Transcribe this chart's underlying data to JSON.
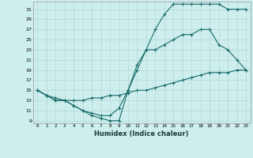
{
  "xlabel": "Humidex (Indice chaleur)",
  "ylabel": "",
  "background_color": "#cdeeed",
  "line_color": "#1a6b6b",
  "grid_color": "#afd8d4",
  "x_ticks": [
    0,
    1,
    2,
    3,
    4,
    5,
    6,
    7,
    8,
    9,
    10,
    11,
    12,
    13,
    14,
    15,
    16,
    17,
    18,
    19,
    20,
    21,
    22,
    23
  ],
  "y_ticks": [
    9,
    11,
    13,
    15,
    17,
    19,
    21,
    23,
    25,
    27,
    29,
    31
  ],
  "xlim": [
    -0.5,
    23.5
  ],
  "ylim": [
    8.5,
    32.5
  ],
  "series": [
    {
      "x": [
        0,
        1,
        2,
        3,
        4,
        5,
        6,
        7,
        8,
        9,
        10,
        11,
        12,
        13,
        14,
        15,
        16,
        17,
        18,
        19,
        20,
        21,
        22,
        23
      ],
      "y": [
        15,
        14,
        13,
        13,
        12,
        11,
        10,
        9.5,
        9,
        9,
        15,
        19,
        23,
        27,
        30,
        32,
        32,
        32,
        32,
        32,
        32,
        31,
        31,
        31
      ]
    },
    {
      "x": [
        0,
        1,
        2,
        3,
        4,
        5,
        6,
        7,
        8,
        9,
        10,
        11,
        12,
        13,
        14,
        15,
        16,
        17,
        18,
        19,
        20,
        21,
        22,
        23
      ],
      "y": [
        15,
        14,
        13,
        13,
        12,
        11,
        10.5,
        10,
        10,
        11.5,
        15,
        20,
        23,
        23,
        24,
        25,
        26,
        26,
        27,
        27,
        24,
        23,
        21,
        19
      ]
    },
    {
      "x": [
        0,
        1,
        2,
        3,
        4,
        5,
        6,
        7,
        8,
        9,
        10,
        11,
        12,
        13,
        14,
        15,
        16,
        17,
        18,
        19,
        20,
        21,
        22,
        23
      ],
      "y": [
        15,
        14,
        13.5,
        13,
        13,
        13,
        13.5,
        13.5,
        14,
        14,
        14.5,
        15,
        15,
        15.5,
        16,
        16.5,
        17,
        17.5,
        18,
        18.5,
        18.5,
        18.5,
        19,
        19
      ]
    }
  ]
}
